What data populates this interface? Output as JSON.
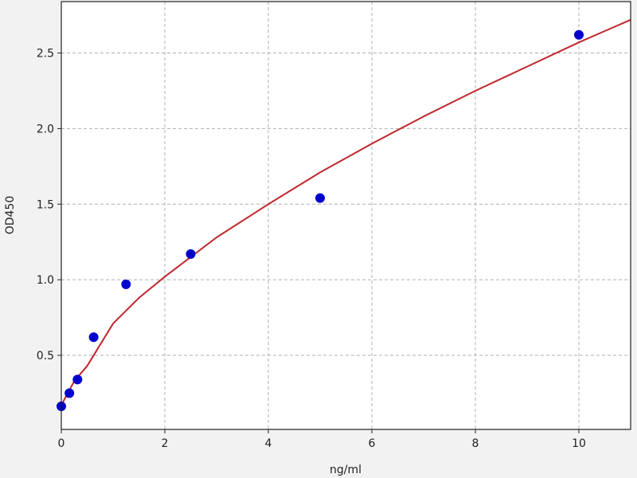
{
  "chart_data": {
    "type": "scatter",
    "title": "",
    "xlabel": "ng/ml",
    "ylabel": "OD450",
    "xlim": [
      0,
      11
    ],
    "ylim": [
      0.01,
      2.84
    ],
    "xticks": [
      "0",
      "2",
      "4",
      "6",
      "8",
      "10"
    ],
    "yticks": [
      "0.5",
      "1.0",
      "1.5",
      "2.0",
      "2.5"
    ],
    "grid": true,
    "series": [
      {
        "type": "scatter",
        "color": "#0000cc",
        "x": [
          0,
          0.156,
          0.3125,
          0.625,
          1.25,
          2.5,
          5,
          10
        ],
        "y": [
          0.163,
          0.25,
          0.34,
          0.62,
          0.97,
          1.17,
          1.54,
          2.62
        ]
      },
      {
        "type": "line",
        "color": "#c0272d",
        "x": [
          0,
          0.25,
          0.5,
          1,
          1.5,
          2,
          3,
          4,
          5,
          6,
          7,
          8,
          9,
          10,
          11
        ],
        "y": [
          0.17,
          0.33,
          0.43,
          0.71,
          0.88,
          1.02,
          1.28,
          1.5,
          1.71,
          1.9,
          2.08,
          2.25,
          2.41,
          2.57,
          2.72
        ]
      }
    ]
  }
}
